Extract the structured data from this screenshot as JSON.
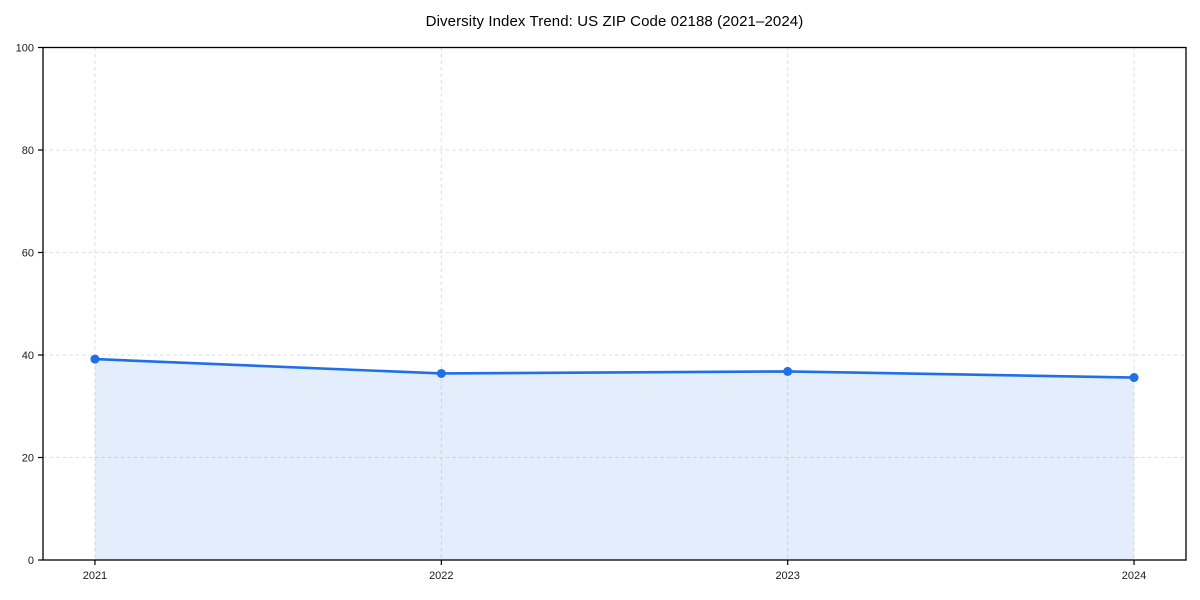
{
  "page": {
    "background": "#ffffff"
  },
  "chart_data": {
    "type": "area",
    "title": "Diversity Index Trend: US ZIP Code 02188 (2021–2024)",
    "x": [
      2021,
      2022,
      2023,
      2024
    ],
    "values": [
      39.2,
      36.4,
      36.8,
      35.6
    ],
    "xticks": [
      "2021",
      "2022",
      "2023",
      "2024"
    ],
    "yticks": [
      0,
      20,
      40,
      60,
      80,
      100
    ],
    "ylim": [
      0,
      100
    ],
    "xlabel": "",
    "ylabel": "",
    "grid": true,
    "grid_style": "dashed",
    "legend": false,
    "colors": {
      "line": "#1f6fe8",
      "marker": "#1f6fe8",
      "fill": "rgba(31,111,232,0.12)",
      "grid": "#dedede",
      "axis": "#000000",
      "tick_label": "#1a1a1a"
    }
  }
}
